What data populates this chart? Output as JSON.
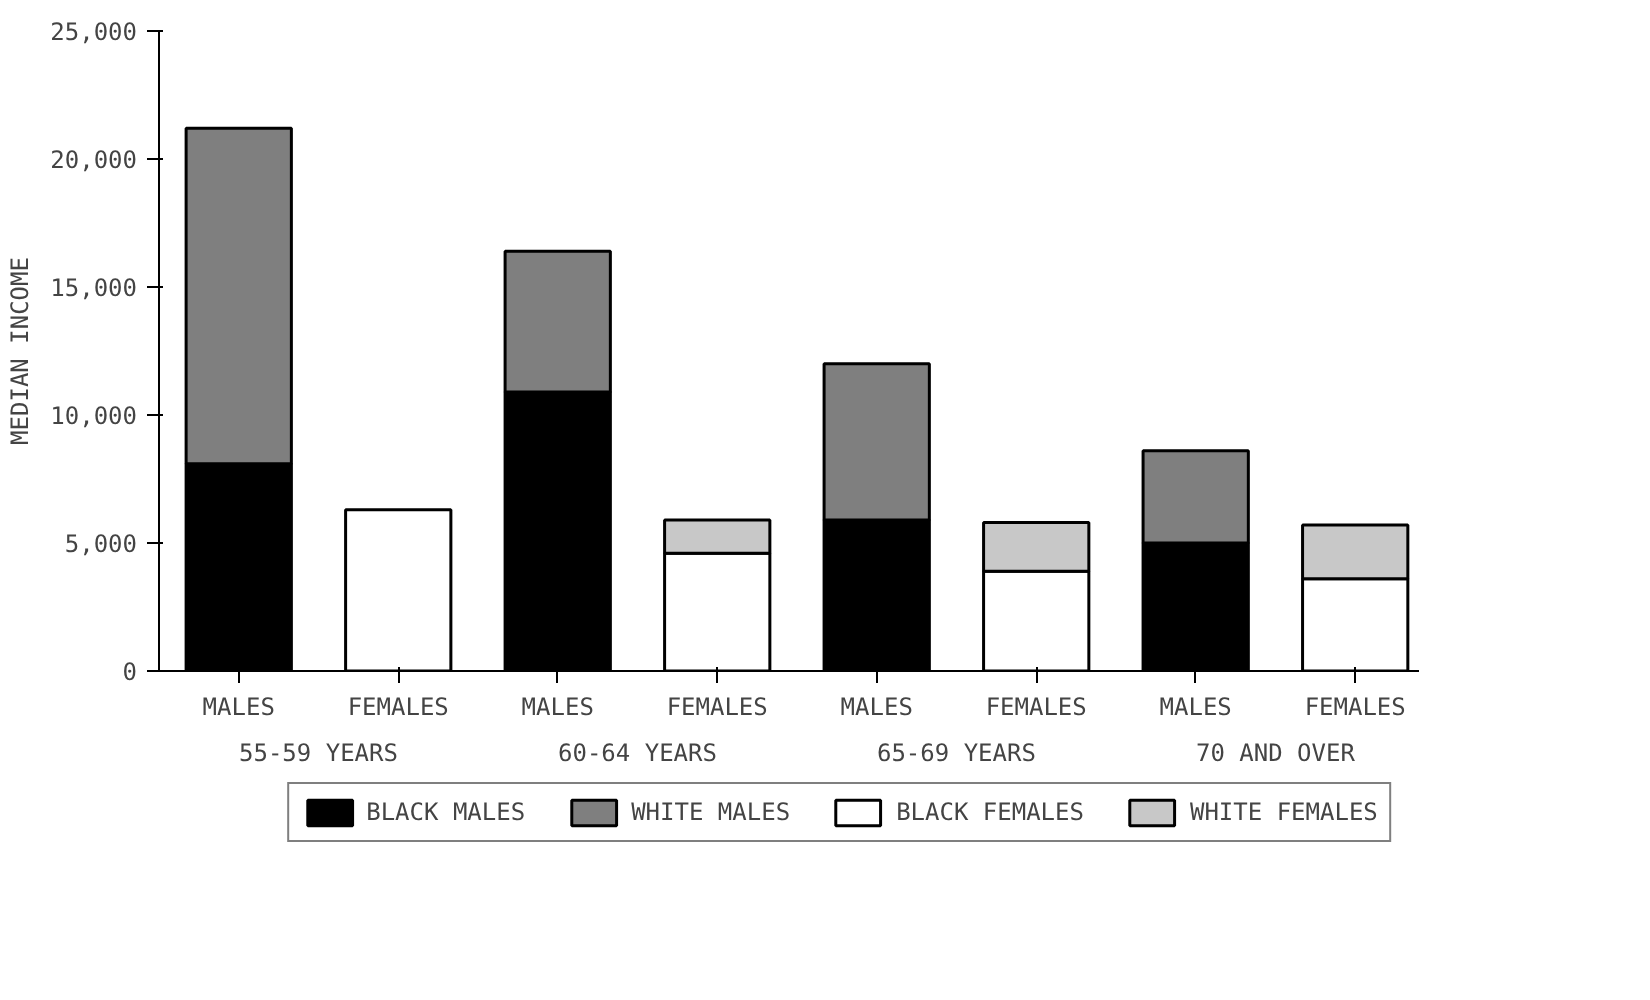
{
  "chart_data": {
    "type": "bar",
    "stacked": true,
    "ylabel": "MEDIAN INCOME",
    "categories": [
      "MALES",
      "FEMALES",
      "MALES",
      "FEMALES",
      "MALES",
      "FEMALES",
      "MALES",
      "FEMALES"
    ],
    "annotations": [
      "55-59 YEARS",
      "60-64 YEARS",
      "65-69 YEARS",
      "70 AND OVER"
    ],
    "series": [
      {
        "name": "BLACK MALES",
        "color": "#000000",
        "values": [
          8100,
          null,
          10900,
          null,
          5900,
          null,
          5000,
          null
        ]
      },
      {
        "name": "WHITE MALES",
        "color": "#7f7f7f",
        "values": [
          13100,
          null,
          5500,
          null,
          6100,
          null,
          3600,
          null
        ]
      },
      {
        "name": "BLACK FEMALES",
        "color": "#ffffff",
        "values": [
          null,
          6300,
          null,
          4600,
          null,
          3900,
          null,
          3600
        ]
      },
      {
        "name": "WHITE FEMALES",
        "color": "#c8c8c8",
        "values": [
          null,
          null,
          null,
          1300,
          null,
          1900,
          null,
          2100
        ]
      }
    ],
    "ylim": [
      0,
      25000
    ],
    "yticks": [
      0,
      {
        "value": 5000,
        "label": "5,000"
      },
      {
        "value": 10000,
        "label": "10,000"
      },
      {
        "value": 15000,
        "label": "15,000"
      },
      {
        "value": 20000,
        "label": "20,000"
      },
      {
        "value": 25000,
        "label": "25,000"
      }
    ],
    "legend": "bottom"
  }
}
